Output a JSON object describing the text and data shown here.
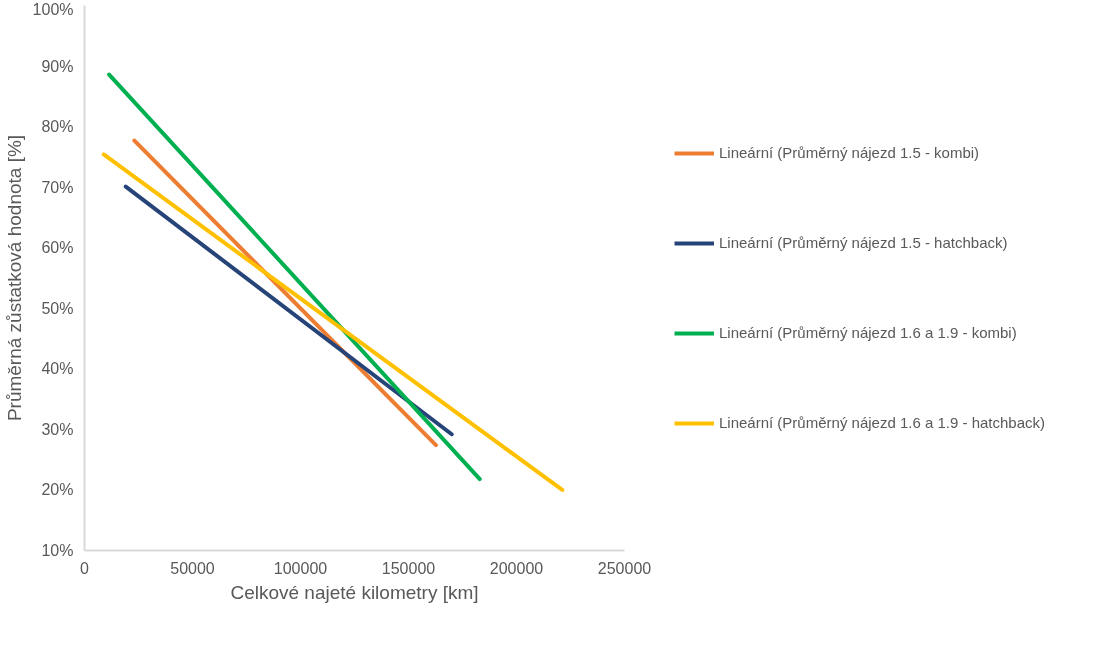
{
  "chart_data": {
    "type": "line",
    "xlabel": "Celkové najeté kilometry [km]",
    "ylabel": "Průměrná zůstatková hodnota [%]",
    "xlim": [
      0,
      250000
    ],
    "xticks": [
      0,
      50000,
      100000,
      150000,
      200000,
      250000
    ],
    "ylim": [
      10,
      100
    ],
    "yticks": [
      {
        "value": 10,
        "label": "10%"
      },
      {
        "value": 20,
        "label": "20%"
      },
      {
        "value": 30,
        "label": "30%"
      },
      {
        "value": 40,
        "label": "40%"
      },
      {
        "value": 50,
        "label": "50%"
      },
      {
        "value": 60,
        "label": "60%"
      },
      {
        "value": 70,
        "label": "70%"
      },
      {
        "value": 80,
        "label": "80%"
      },
      {
        "value": 90,
        "label": "90%"
      },
      {
        "value": 100,
        "label": "100%"
      }
    ],
    "grid": false,
    "legend": "right",
    "marker": "none",
    "line_style": "solid",
    "series": [
      {
        "name": "Lineární (Průměrný nájezd 1.5 - kombi)",
        "color": "#ed7d31",
        "x": [
          23100,
          162700
        ],
        "values": [
          77.7,
          27.4
        ]
      },
      {
        "name": "Lineární (Průměrný nájezd 1.5 - hatchback)",
        "color": "#264478",
        "x": [
          19100,
          170000
        ],
        "values": [
          70.1,
          29.2
        ]
      },
      {
        "name": "Lineární (Průměrný nájezd 1.6 a 1.9 - kombi)",
        "color": "#00b050",
        "x": [
          11400,
          183000
        ],
        "values": [
          88.6,
          21.8
        ]
      },
      {
        "name": "Lineární (Průměrný nájezd 1.6 a 1.9 - hatchback)",
        "color": "#ffc000",
        "x": [
          8900,
          221200
        ],
        "values": [
          75.4,
          20.0
        ]
      }
    ]
  }
}
